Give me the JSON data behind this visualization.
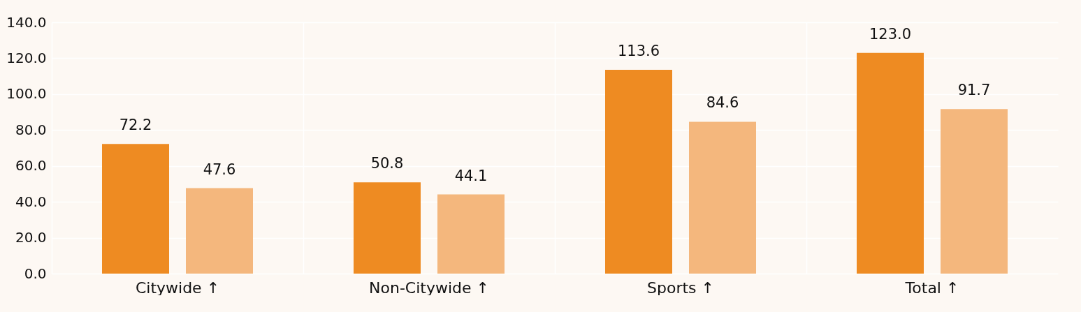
{
  "chart_data": {
    "type": "bar",
    "categories": [
      "Citywide ↑",
      "Non-Citywide ↑",
      "Sports ↑",
      "Total ↑"
    ],
    "series": [
      {
        "color": "#ee8b22",
        "values": [
          72.2,
          50.8,
          113.6,
          123.0
        ],
        "value_labels": [
          "72.2",
          "50.8",
          "113.6",
          "123.0"
        ]
      },
      {
        "color": "#f4b77d",
        "values": [
          47.6,
          44.1,
          84.6,
          91.7
        ],
        "value_labels": [
          "47.6",
          "44.1",
          "84.6",
          "91.7"
        ]
      }
    ],
    "ylim": [
      0,
      140
    ],
    "yticks": [
      {
        "value": 0,
        "label": "0.0"
      },
      {
        "value": 20,
        "label": "20.0"
      },
      {
        "value": 40,
        "label": "40.0"
      },
      {
        "value": 60,
        "label": "60.0"
      },
      {
        "value": 80,
        "label": "80.0"
      },
      {
        "value": 100,
        "label": "100.0"
      },
      {
        "value": 120,
        "label": "120.0"
      },
      {
        "value": 140,
        "label": "140.0"
      }
    ],
    "grid": true
  }
}
